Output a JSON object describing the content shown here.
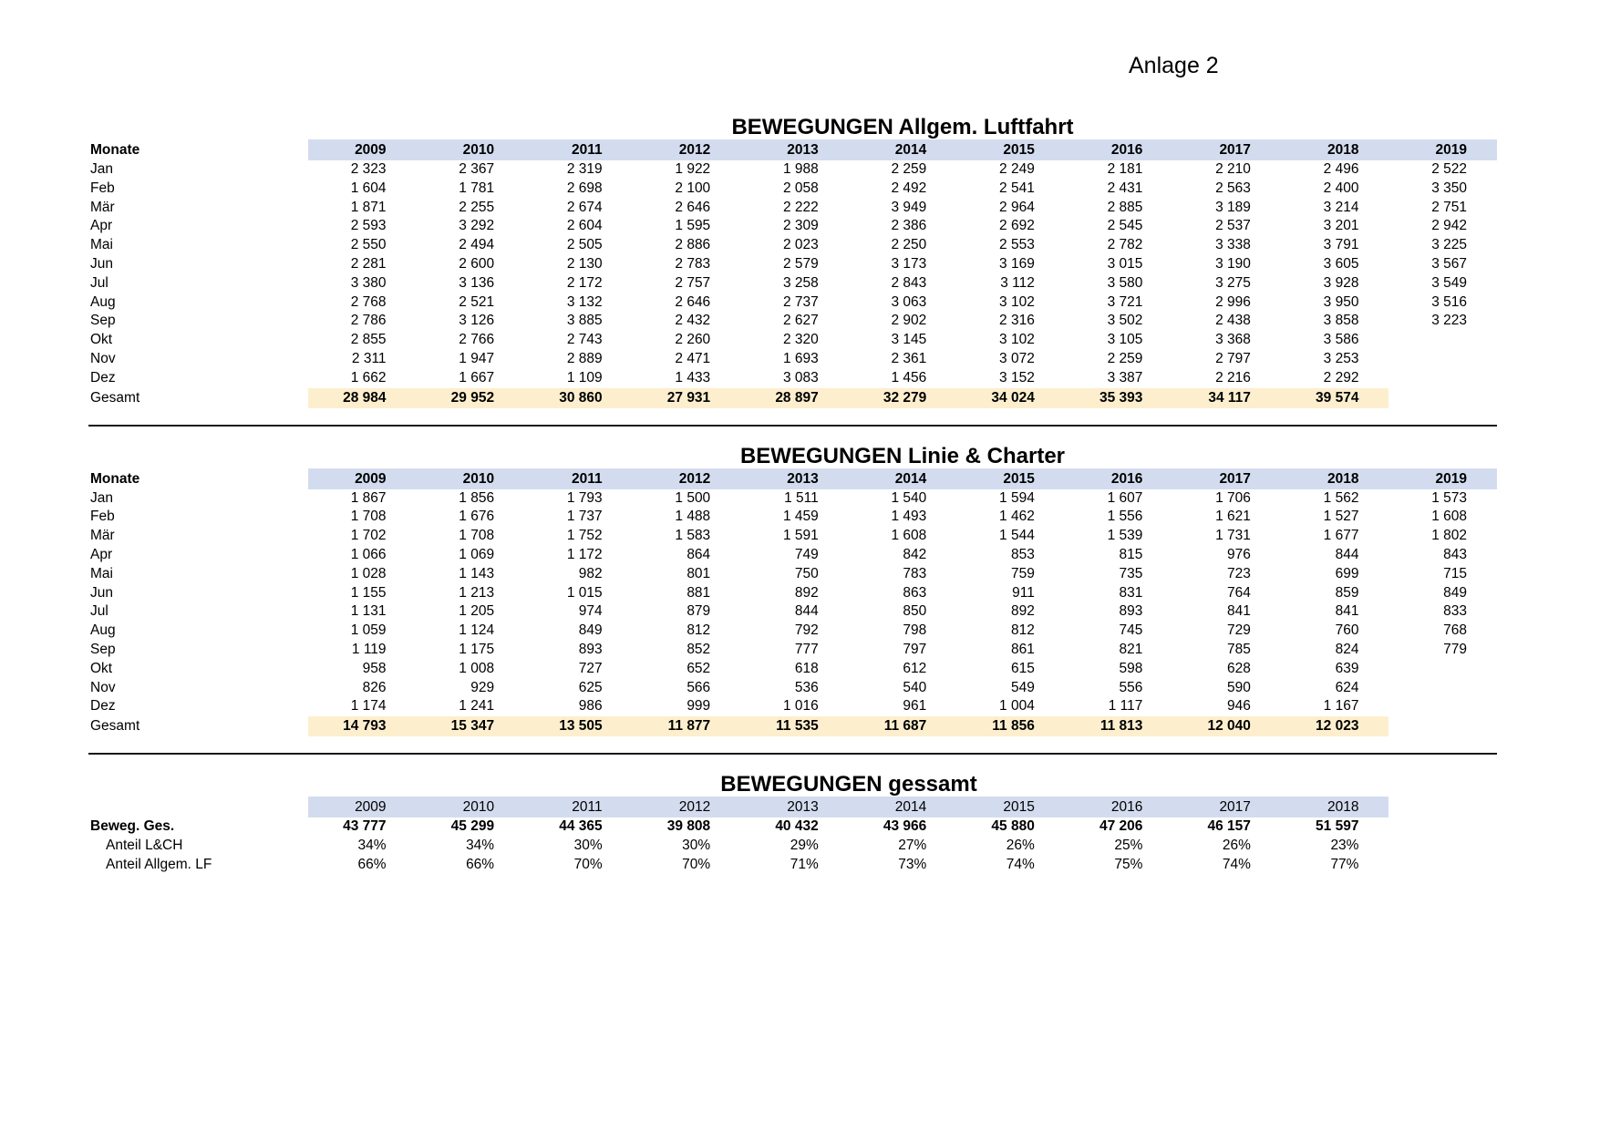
{
  "page": {
    "annex_label": "Anlage 2"
  },
  "colors": {
    "header_band": "#d3dcef",
    "total_band": "#fdefce"
  },
  "tables": [
    {
      "title": "BEWEGUNGEN Allgem. Luftfahrt",
      "label_header": "Monate",
      "years_bold": true,
      "years": [
        "2009",
        "2010",
        "2011",
        "2012",
        "2013",
        "2014",
        "2015",
        "2016",
        "2017",
        "2018",
        "2019"
      ],
      "rows": [
        {
          "label": "Jan",
          "values": [
            "2 323",
            "2 367",
            "2 319",
            "1 922",
            "1 988",
            "2 259",
            "2 249",
            "2 181",
            "2 210",
            "2 496",
            "2 522"
          ]
        },
        {
          "label": "Feb",
          "values": [
            "1 604",
            "1 781",
            "2 698",
            "2 100",
            "2 058",
            "2 492",
            "2 541",
            "2 431",
            "2 563",
            "2 400",
            "3 350"
          ]
        },
        {
          "label": "Mär",
          "values": [
            "1 871",
            "2 255",
            "2 674",
            "2 646",
            "2 222",
            "3 949",
            "2 964",
            "2 885",
            "3 189",
            "3 214",
            "2 751"
          ]
        },
        {
          "label": "Apr",
          "values": [
            "2 593",
            "3 292",
            "2 604",
            "1 595",
            "2 309",
            "2 386",
            "2 692",
            "2 545",
            "2 537",
            "3 201",
            "2 942"
          ]
        },
        {
          "label": "Mai",
          "values": [
            "2 550",
            "2 494",
            "2 505",
            "2 886",
            "2 023",
            "2 250",
            "2 553",
            "2 782",
            "3 338",
            "3 791",
            "3 225"
          ]
        },
        {
          "label": "Jun",
          "values": [
            "2 281",
            "2 600",
            "2 130",
            "2 783",
            "2 579",
            "3 173",
            "3 169",
            "3 015",
            "3 190",
            "3 605",
            "3 567"
          ]
        },
        {
          "label": "Jul",
          "values": [
            "3 380",
            "3 136",
            "2 172",
            "2 757",
            "3 258",
            "2 843",
            "3 112",
            "3 580",
            "3 275",
            "3 928",
            "3 549"
          ]
        },
        {
          "label": "Aug",
          "values": [
            "2 768",
            "2 521",
            "3 132",
            "2 646",
            "2 737",
            "3 063",
            "3 102",
            "3 721",
            "2 996",
            "3 950",
            "3 516"
          ]
        },
        {
          "label": "Sep",
          "values": [
            "2 786",
            "3 126",
            "3 885",
            "2 432",
            "2 627",
            "2 902",
            "2 316",
            "3 502",
            "2 438",
            "3 858",
            "3 223"
          ]
        },
        {
          "label": "Okt",
          "values": [
            "2 855",
            "2 766",
            "2 743",
            "2 260",
            "2 320",
            "3 145",
            "3 102",
            "3 105",
            "3 368",
            "3 586",
            ""
          ]
        },
        {
          "label": "Nov",
          "values": [
            "2 311",
            "1 947",
            "2 889",
            "2 471",
            "1 693",
            "2 361",
            "3 072",
            "2 259",
            "2 797",
            "3 253",
            ""
          ]
        },
        {
          "label": "Dez",
          "values": [
            "1 662",
            "1 667",
            "1 109",
            "1 433",
            "3 083",
            "1 456",
            "3 152",
            "3 387",
            "2 216",
            "2 292",
            ""
          ]
        }
      ],
      "total": {
        "label": "Gesamt",
        "values": [
          "28 984",
          "29 952",
          "30 860",
          "27 931",
          "28 897",
          "32 279",
          "34 024",
          "35 393",
          "34 117",
          "39 574",
          ""
        ]
      }
    },
    {
      "title": "BEWEGUNGEN Linie & Charter",
      "label_header": "Monate",
      "years_bold": true,
      "years": [
        "2009",
        "2010",
        "2011",
        "2012",
        "2013",
        "2014",
        "2015",
        "2016",
        "2017",
        "2018",
        "2019"
      ],
      "rows": [
        {
          "label": "Jan",
          "values": [
            "1 867",
            "1 856",
            "1 793",
            "1 500",
            "1 511",
            "1 540",
            "1 594",
            "1 607",
            "1 706",
            "1 562",
            "1 573"
          ]
        },
        {
          "label": "Feb",
          "values": [
            "1 708",
            "1 676",
            "1 737",
            "1 488",
            "1 459",
            "1 493",
            "1 462",
            "1 556",
            "1 621",
            "1 527",
            "1 608"
          ]
        },
        {
          "label": "Mär",
          "values": [
            "1 702",
            "1 708",
            "1 752",
            "1 583",
            "1 591",
            "1 608",
            "1 544",
            "1 539",
            "1 731",
            "1 677",
            "1 802"
          ]
        },
        {
          "label": "Apr",
          "values": [
            "1 066",
            "1 069",
            "1 172",
            "864",
            "749",
            "842",
            "853",
            "815",
            "976",
            "844",
            "843"
          ]
        },
        {
          "label": "Mai",
          "values": [
            "1 028",
            "1 143",
            "982",
            "801",
            "750",
            "783",
            "759",
            "735",
            "723",
            "699",
            "715"
          ]
        },
        {
          "label": "Jun",
          "values": [
            "1 155",
            "1 213",
            "1 015",
            "881",
            "892",
            "863",
            "911",
            "831",
            "764",
            "859",
            "849"
          ]
        },
        {
          "label": "Jul",
          "values": [
            "1 131",
            "1 205",
            "974",
            "879",
            "844",
            "850",
            "892",
            "893",
            "841",
            "841",
            "833"
          ]
        },
        {
          "label": "Aug",
          "values": [
            "1 059",
            "1 124",
            "849",
            "812",
            "792",
            "798",
            "812",
            "745",
            "729",
            "760",
            "768"
          ]
        },
        {
          "label": "Sep",
          "values": [
            "1 119",
            "1 175",
            "893",
            "852",
            "777",
            "797",
            "861",
            "821",
            "785",
            "824",
            "779"
          ]
        },
        {
          "label": "Okt",
          "values": [
            "958",
            "1 008",
            "727",
            "652",
            "618",
            "612",
            "615",
            "598",
            "628",
            "639",
            ""
          ]
        },
        {
          "label": "Nov",
          "values": [
            "826",
            "929",
            "625",
            "566",
            "536",
            "540",
            "549",
            "556",
            "590",
            "624",
            ""
          ]
        },
        {
          "label": "Dez",
          "values": [
            "1 174",
            "1 241",
            "986",
            "999",
            "1 016",
            "961",
            "1 004",
            "1 117",
            "946",
            "1 167",
            ""
          ]
        }
      ],
      "total": {
        "label": "Gesamt",
        "values": [
          "14 793",
          "15 347",
          "13 505",
          "11 877",
          "11 535",
          "11 687",
          "11 856",
          "11 813",
          "12 040",
          "12 023",
          ""
        ]
      }
    },
    {
      "title": "BEWEGUNGEN gessamt",
      "label_header": "",
      "years_bold": false,
      "years": [
        "2009",
        "2010",
        "2011",
        "2012",
        "2013",
        "2014",
        "2015",
        "2016",
        "2017",
        "2018"
      ],
      "rows": [
        {
          "label": "Beweg. Ges.",
          "bold": true,
          "values": [
            "43 777",
            "45 299",
            "44 365",
            "39 808",
            "40 432",
            "43 966",
            "45 880",
            "47 206",
            "46 157",
            "51 597"
          ]
        },
        {
          "label": "Anteil L&CH",
          "indent": true,
          "values": [
            "34%",
            "34%",
            "30%",
            "30%",
            "29%",
            "27%",
            "26%",
            "25%",
            "26%",
            "23%"
          ]
        },
        {
          "label": "Anteil Allgem. LF",
          "indent": true,
          "values": [
            "66%",
            "66%",
            "70%",
            "70%",
            "71%",
            "73%",
            "74%",
            "75%",
            "74%",
            "77%"
          ]
        }
      ],
      "total": null
    }
  ]
}
